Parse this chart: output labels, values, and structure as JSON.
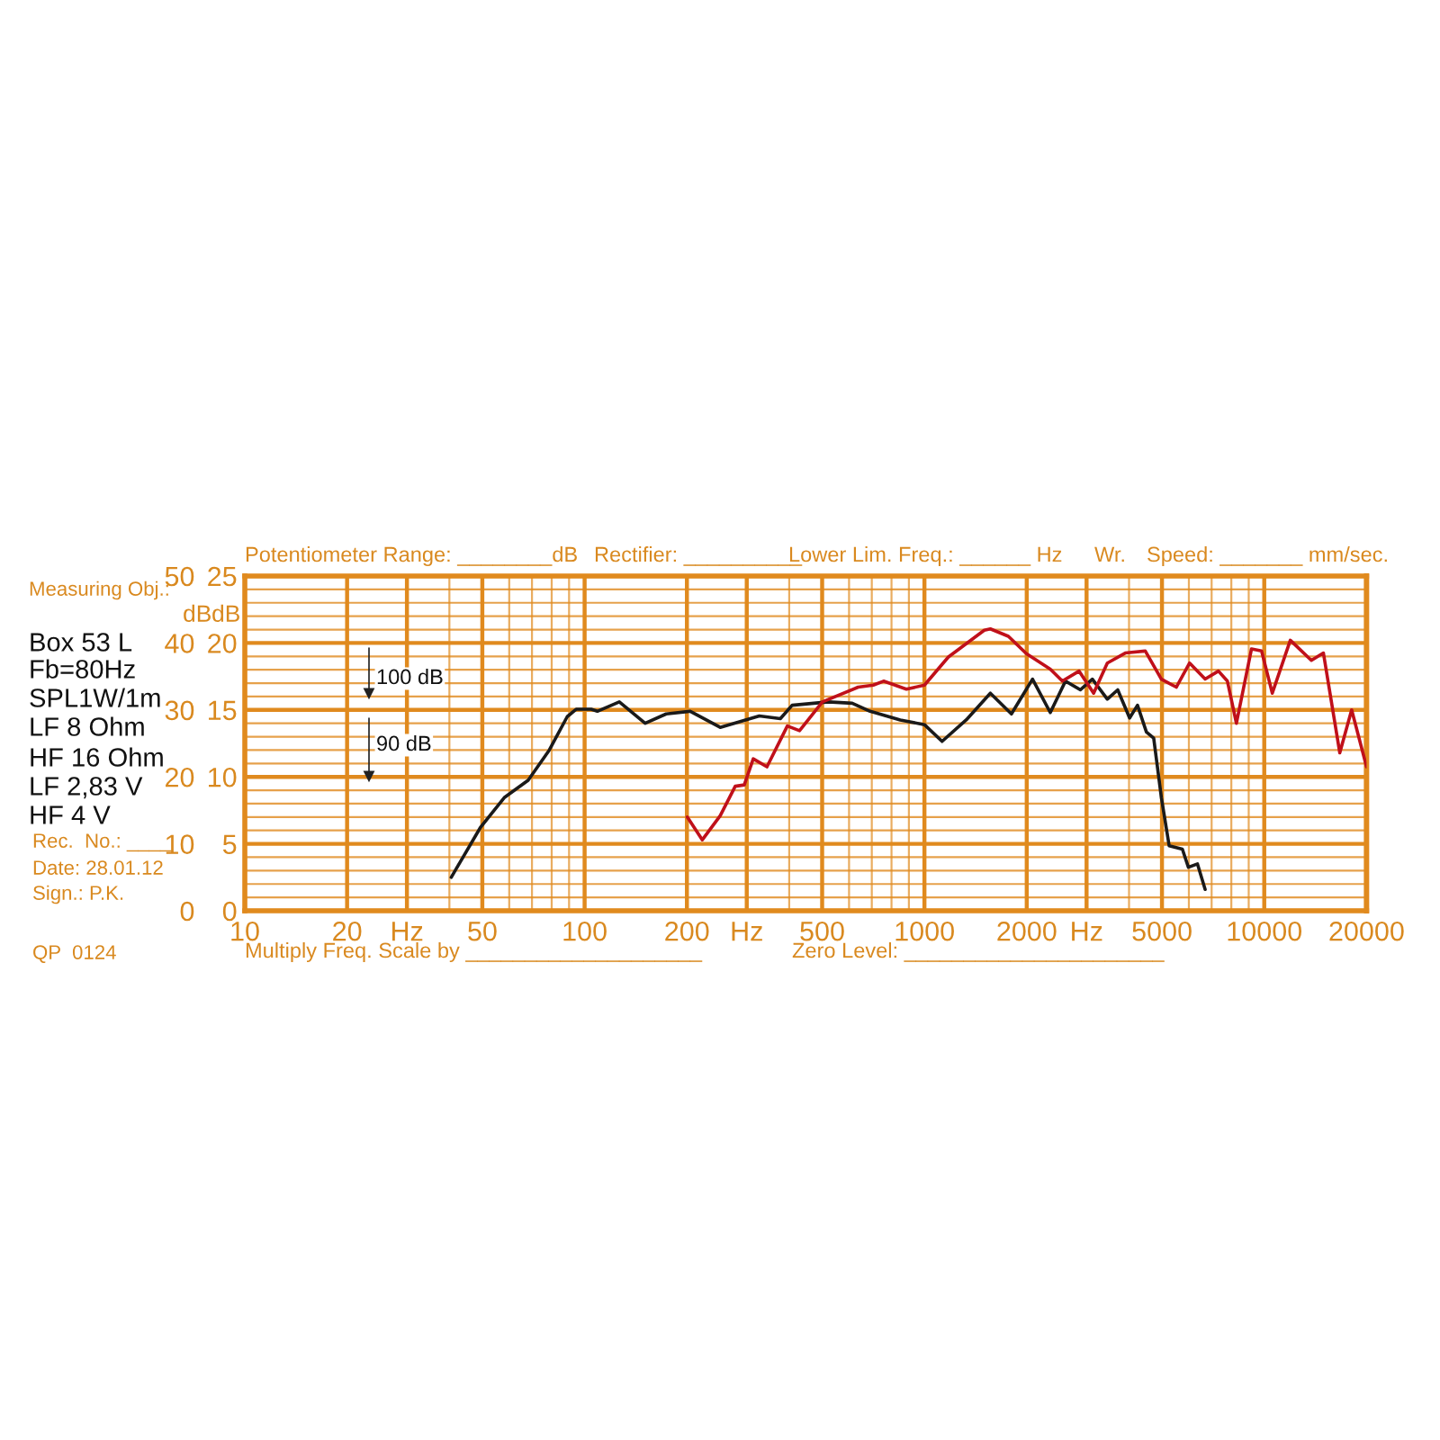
{
  "chart_data": {
    "type": "line",
    "log": "x",
    "grid": true,
    "xlim": [
      10,
      20000
    ],
    "xticks": [
      10,
      20,
      {
        "value": 30,
        "label": "Hz"
      },
      {
        "value": 40,
        "label": null
      },
      50,
      {
        "value": 60,
        "label": null
      },
      {
        "value": 70,
        "label": null
      },
      {
        "value": 80,
        "label": null
      },
      {
        "value": 90,
        "label": null
      },
      100,
      200,
      {
        "value": 300,
        "label": "Hz"
      },
      {
        "value": 400,
        "label": null
      },
      500,
      {
        "value": 600,
        "label": null
      },
      {
        "value": 700,
        "label": null
      },
      {
        "value": 800,
        "label": null
      },
      {
        "value": 900,
        "label": null
      },
      1000,
      2000,
      {
        "value": 3000,
        "label": "Hz"
      },
      {
        "value": 4000,
        "label": null
      },
      5000,
      {
        "value": 6000,
        "label": null
      },
      {
        "value": 7000,
        "label": null
      },
      {
        "value": 8000,
        "label": null
      },
      {
        "value": 9000,
        "label": null
      },
      10000,
      20000
    ],
    "ylim": [
      0,
      50
    ],
    "yticks": [
      0,
      {
        "value": 2,
        "label": null
      },
      {
        "value": 4,
        "label": null
      },
      {
        "value": 6,
        "label": null
      },
      {
        "value": 8,
        "label": null
      },
      10,
      {
        "value": 12,
        "label": null
      },
      {
        "value": 14,
        "label": null
      },
      {
        "value": 16,
        "label": null
      },
      {
        "value": 18,
        "label": null
      },
      20,
      {
        "value": 22,
        "label": null
      },
      {
        "value": 24,
        "label": null
      },
      {
        "value": 26,
        "label": null
      },
      {
        "value": 28,
        "label": null
      },
      30,
      {
        "value": 32,
        "label": null
      },
      {
        "value": 34,
        "label": null
      },
      {
        "value": 36,
        "label": null
      },
      {
        "value": 38,
        "label": null
      },
      40,
      {
        "value": 42,
        "label": null
      },
      {
        "value": 44,
        "label": null
      },
      {
        "value": 46,
        "label": null
      },
      {
        "value": 48,
        "label": null
      },
      50
    ],
    "ylabel": "dB",
    "y2lim": [
      0,
      25
    ],
    "y2ticks": [
      0,
      5,
      10,
      15,
      20,
      25
    ],
    "y2label": "dB",
    "series": [
      {
        "color": "#1a1a1a",
        "x": [
          40.5,
          49.3,
          58,
          68.2,
          78.7,
          88.9,
          94.4,
          104.5,
          109,
          126.5,
          150.7,
          173.8,
          204.6,
          250.6,
          326.6,
          376.7,
          408,
          521,
          613,
          692,
          849,
          1000,
          1127,
          1327,
          1563,
          1803,
          2080,
          2346,
          2600,
          2877,
          3120,
          3453,
          3705,
          4016,
          4236,
          4500,
          4727,
          4980,
          5250,
          5741,
          5980,
          6360,
          6700
        ],
        "values": [
          5.0,
          12.4,
          16.9,
          19.5,
          24.0,
          29.0,
          30.1,
          30.1,
          29.8,
          31.2,
          28.0,
          29.4,
          29.8,
          27.4,
          29.1,
          28.7,
          30.7,
          31.2,
          31.0,
          29.8,
          28.5,
          27.8,
          25.3,
          28.5,
          32.5,
          29.4,
          34.6,
          29.6,
          34.3,
          33.0,
          34.6,
          31.6,
          33.0,
          28.8,
          30.7,
          26.7,
          25.8,
          16.9,
          9.7,
          9.2,
          6.5,
          7.0,
          3.2
        ]
      },
      {
        "color": "#c0101a",
        "x": [
          200.5,
          222,
          250.6,
          277.5,
          295,
          313.5,
          344,
          395,
          429,
          501,
          638,
          707,
          758,
          885,
          1000,
          1176,
          1500,
          1563,
          1766,
          1995,
          2346,
          2546,
          2852,
          3147,
          3453,
          3900,
          4466,
          4980,
          5510,
          6030,
          6700,
          7330,
          7790,
          8280,
          9170,
          9820,
          10560,
          11930,
          13760,
          14930,
          16680,
          18080,
          20000
        ],
        "values": [
          14.0,
          10.6,
          14.2,
          18.6,
          18.8,
          22.7,
          21.5,
          27.6,
          26.9,
          31.2,
          33.4,
          33.7,
          34.3,
          33.1,
          33.7,
          37.9,
          41.9,
          42.1,
          41.0,
          38.4,
          36.1,
          34.3,
          35.8,
          32.5,
          37.0,
          38.5,
          38.8,
          34.6,
          33.4,
          37.0,
          34.6,
          35.8,
          34.3,
          28.0,
          39.1,
          38.8,
          32.5,
          40.4,
          37.4,
          38.5,
          23.6,
          30.0,
          21.5
        ]
      }
    ],
    "annotations": [
      "100 dB",
      "90 dB",
      "Potentiometer Range: ________dB",
      "Rectifier: __________",
      "Lower Lim. Freq.: ______ Hz",
      "Wr.",
      "Speed: _______ mm/sec.",
      "Measuring Obj.:",
      "Box 53 L",
      "Fb=80Hz",
      "SPL1W/1m",
      "LF 8 Ohm",
      "HF 16 Ohm",
      "LF 2,83 V",
      "HF 4 V",
      "Rec.  No.: ____",
      "Date: 28.01.12",
      "Sign.: P.K.",
      "QP  0124",
      "Multiply Freq. Scale by ____________________",
      "Zero Level: ______________________"
    ]
  }
}
